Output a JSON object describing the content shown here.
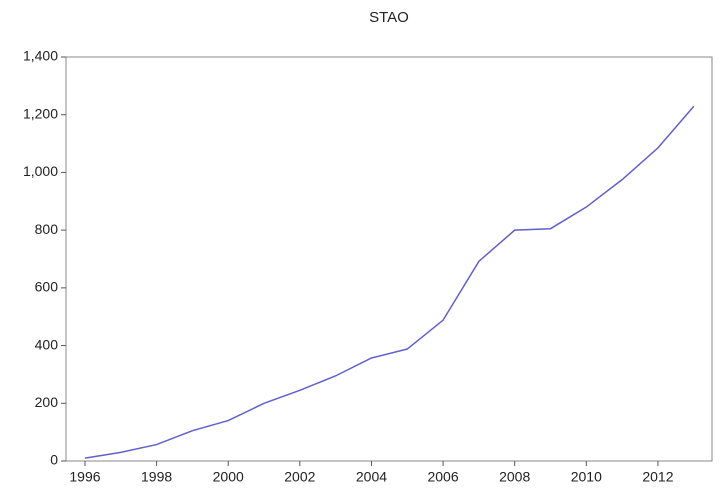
{
  "chart_data": {
    "type": "line",
    "title": "STAO",
    "x": [
      1996,
      1997,
      1998,
      1999,
      2000,
      2001,
      2002,
      2003,
      2004,
      2005,
      2006,
      2007,
      2008,
      2009,
      2010,
      2011,
      2012,
      2013
    ],
    "series": [
      {
        "name": "STAO",
        "color": "#5f5fd0",
        "values": [
          10,
          30,
          57,
          105,
          140,
          200,
          245,
          295,
          357,
          388,
          488,
          692,
          800,
          805,
          880,
          975,
          1085,
          1229
        ]
      }
    ],
    "xlim": [
      1995.47,
      2013.51
    ],
    "xticks": [
      1996,
      1998,
      2000,
      2002,
      2004,
      2006,
      2008,
      2010,
      2012
    ],
    "ylim": [
      0,
      1400
    ],
    "yticks": [
      0,
      200,
      400,
      600,
      800,
      {
        "value": 1000,
        "label": "1,000"
      },
      {
        "value": 1200,
        "label": "1,200"
      },
      {
        "value": 1400,
        "label": "1,400"
      }
    ]
  }
}
